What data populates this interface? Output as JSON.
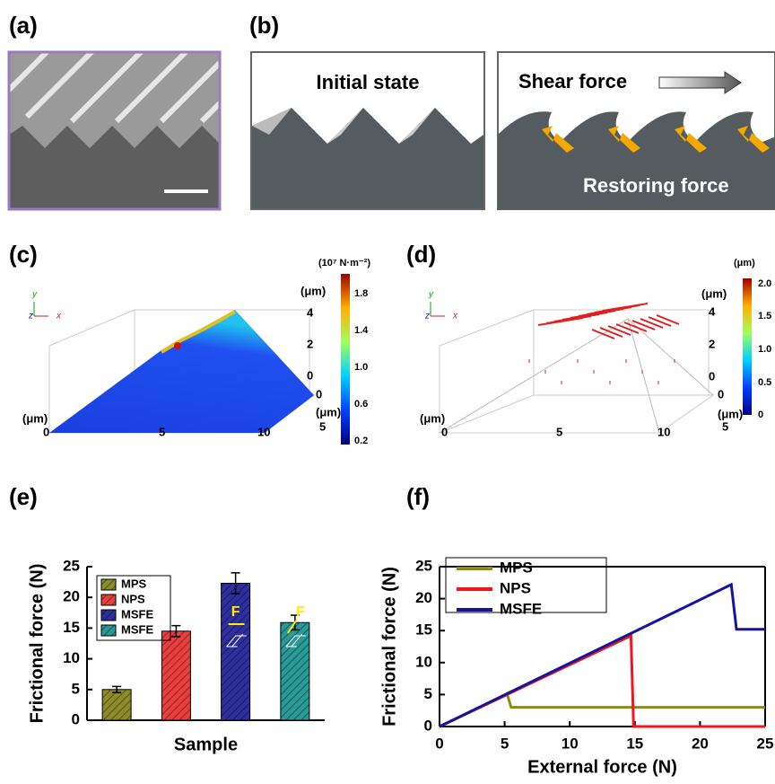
{
  "panels": {
    "a": {
      "label": "(a)"
    },
    "b": {
      "label": "(b)",
      "left_title": "Initial state",
      "right_title": "Shear force",
      "right_caption": "Restoring force"
    },
    "c": {
      "label": "(c)",
      "colorbar_unit": "(10⁷ N·m⁻²)",
      "colorbar_ticks": [
        "1.8",
        "1.4",
        "1.0",
        "0.6",
        "0.2"
      ],
      "axis_texts": [
        "y",
        "z",
        "x",
        "(μm)",
        "4",
        "2",
        "0",
        "0",
        "(μm)",
        "5",
        "(μm)",
        "0",
        "5",
        "10"
      ]
    },
    "d": {
      "label": "(d)",
      "colorbar_unit": "(μm)",
      "colorbar_ticks": [
        "2.0",
        "1.5",
        "1.0",
        "0.5",
        "0"
      ],
      "axis_texts": [
        "y",
        "z",
        "x",
        "(μm)",
        "4",
        "2",
        "0",
        "0",
        "(μm)",
        "5",
        "(μm)",
        "0",
        "5",
        "10"
      ]
    }
  },
  "chart_data": [
    {
      "type": "bar",
      "panel_label": "(e)",
      "xlabel": "Sample",
      "ylabel": "Frictional force (N)",
      "ylim": [
        0,
        25
      ],
      "yticks": [
        0,
        5,
        10,
        15,
        20,
        25
      ],
      "legend": "upper left",
      "series": [
        {
          "name": "MPS",
          "color": "#8c8c2c",
          "values": [
            5.0
          ],
          "errors": [
            0.5
          ]
        },
        {
          "name": "NPS",
          "color": "#e8403e",
          "values": [
            14.5
          ],
          "errors": [
            0.9
          ]
        },
        {
          "name": "MSFE",
          "color": "#2e2e9c",
          "values": [
            22.3
          ],
          "errors": [
            1.7
          ]
        },
        {
          "name": "MSFE",
          "color": "#2a9a98",
          "values": [
            15.9
          ],
          "errors": [
            1.2
          ]
        }
      ],
      "annotations": [
        "F",
        "F"
      ]
    },
    {
      "type": "line",
      "panel_label": "(f)",
      "xlabel": "External force (N)",
      "ylabel": "Frictional force (N)",
      "xlim": [
        0,
        25
      ],
      "ylim": [
        0,
        25
      ],
      "xticks": [
        0,
        5,
        10,
        15,
        20,
        25
      ],
      "yticks": [
        0,
        5,
        10,
        15,
        20,
        25
      ],
      "legend": "upper left",
      "series": [
        {
          "name": "MPS",
          "color": "#8c8c14",
          "x": [
            0,
            5.2,
            5.5,
            25
          ],
          "values": [
            0,
            5,
            3,
            3
          ]
        },
        {
          "name": "NPS",
          "color": "#f0161e",
          "x": [
            0,
            14.7,
            14.9,
            25
          ],
          "values": [
            0,
            14.2,
            0,
            0
          ]
        },
        {
          "name": "MSFE",
          "color": "#1414a0",
          "x": [
            0,
            22.4,
            22.8,
            25
          ],
          "values": [
            0,
            22.2,
            15.2,
            15.2
          ]
        }
      ]
    }
  ]
}
